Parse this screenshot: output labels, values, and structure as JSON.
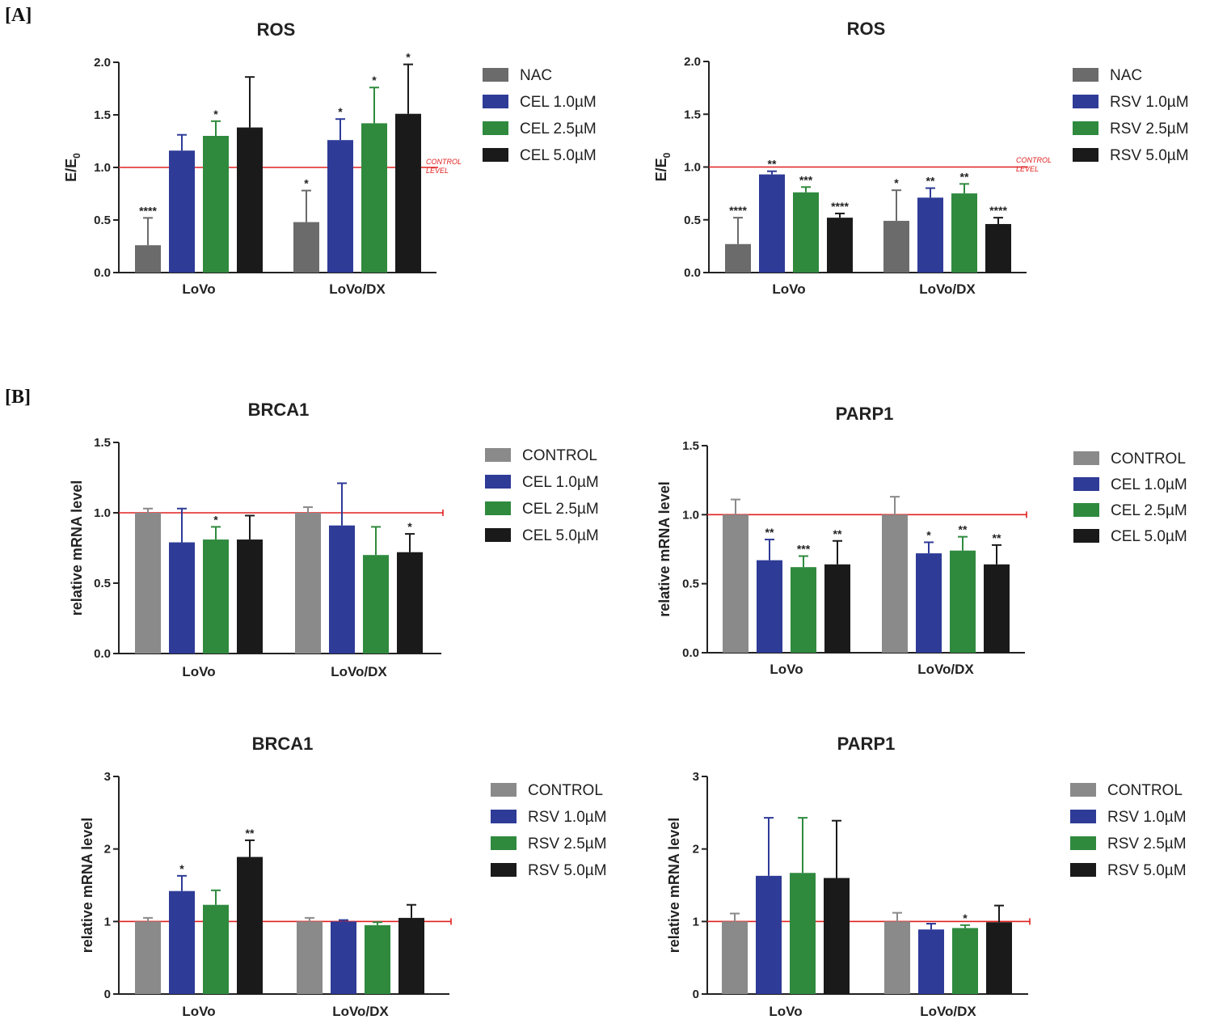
{
  "panel_labels": {
    "a": "[A]",
    "b": "[B]"
  },
  "colors": {
    "nac": "#6b6b6b",
    "control": "#8a8a8a",
    "blue": "#2e3b97",
    "green": "#2f8a3e",
    "black": "#1a1a1a",
    "control_line": "#e02020"
  },
  "chart_data": [
    {
      "id": "ros-cel",
      "type": "bar",
      "title": "ROS",
      "ylabel": "E/E",
      "ylabel_sub": "0",
      "ylim": [
        0,
        2.0
      ],
      "yticks": [
        "0.0",
        "0.5",
        "1.0",
        "1.5",
        "2.0"
      ],
      "categories": [
        "LoVo",
        "LoVo/DX"
      ],
      "control_level": 1.0,
      "control_note": [
        "CONTROL",
        "LEVEL"
      ],
      "series": [
        {
          "name": "NAC",
          "color": "nac",
          "values": [
            0.26,
            0.48
          ],
          "errors": [
            0.26,
            0.3
          ],
          "sig": [
            "****",
            "*"
          ]
        },
        {
          "name": "CEL 1.0µM",
          "color": "blue",
          "values": [
            1.16,
            1.26
          ],
          "errors": [
            0.15,
            0.2
          ],
          "sig": [
            "",
            "*"
          ]
        },
        {
          "name": "CEL 2.5µM",
          "color": "green",
          "values": [
            1.3,
            1.42
          ],
          "errors": [
            0.14,
            0.34
          ],
          "sig": [
            "*",
            "*"
          ]
        },
        {
          "name": "CEL 5.0µM",
          "color": "black",
          "values": [
            1.38,
            1.51
          ],
          "errors": [
            0.48,
            0.47
          ],
          "sig": [
            "",
            "*"
          ]
        }
      ]
    },
    {
      "id": "ros-rsv",
      "type": "bar",
      "title": "ROS",
      "ylabel": "E/E",
      "ylabel_sub": "0",
      "ylim": [
        0,
        2.0
      ],
      "yticks": [
        "0.0",
        "0.5",
        "1.0",
        "1.5",
        "2.0"
      ],
      "categories": [
        "LoVo",
        "LoVo/DX"
      ],
      "control_level": 1.0,
      "control_note": [
        "CONTROL",
        "LEVEL"
      ],
      "series": [
        {
          "name": "NAC",
          "color": "nac",
          "values": [
            0.27,
            0.49
          ],
          "errors": [
            0.25,
            0.29
          ],
          "sig": [
            "****",
            "*"
          ]
        },
        {
          "name": "RSV 1.0µM",
          "color": "blue",
          "values": [
            0.93,
            0.71
          ],
          "errors": [
            0.03,
            0.09
          ],
          "sig": [
            "**",
            "**"
          ]
        },
        {
          "name": "RSV 2.5µM",
          "color": "green",
          "values": [
            0.76,
            0.75
          ],
          "errors": [
            0.05,
            0.09
          ],
          "sig": [
            "***",
            "**"
          ]
        },
        {
          "name": "RSV 5.0µM",
          "color": "black",
          "values": [
            0.52,
            0.46
          ],
          "errors": [
            0.04,
            0.06
          ],
          "sig": [
            "****",
            "****"
          ]
        }
      ]
    },
    {
      "id": "brca1-cel",
      "type": "bar",
      "title": "BRCA1",
      "ylabel": "relative mRNA level",
      "ylabel_sub": "",
      "ylim": [
        0,
        1.5
      ],
      "yticks": [
        "0.0",
        "0.5",
        "1.0",
        "1.5"
      ],
      "categories": [
        "LoVo",
        "LoVo/DX"
      ],
      "control_level": 1.0,
      "series": [
        {
          "name": "CONTROL",
          "color": "control",
          "values": [
            1.0,
            1.0
          ],
          "errors": [
            0.03,
            0.04
          ],
          "sig": [
            "",
            ""
          ]
        },
        {
          "name": "CEL 1.0µM",
          "color": "blue",
          "values": [
            0.79,
            0.91
          ],
          "errors": [
            0.24,
            0.3
          ],
          "sig": [
            "",
            ""
          ]
        },
        {
          "name": "CEL 2.5µM",
          "color": "green",
          "values": [
            0.81,
            0.7
          ],
          "errors": [
            0.09,
            0.2
          ],
          "sig": [
            "*",
            ""
          ]
        },
        {
          "name": "CEL 5.0µM",
          "color": "black",
          "values": [
            0.81,
            0.72
          ],
          "errors": [
            0.17,
            0.13
          ],
          "sig": [
            "",
            "*"
          ]
        }
      ]
    },
    {
      "id": "parp1-cel",
      "type": "bar",
      "title": "PARP1",
      "ylabel": "relative mRNA level",
      "ylabel_sub": "",
      "ylim": [
        0,
        1.5
      ],
      "yticks": [
        "0.0",
        "0.5",
        "1.0",
        "1.5"
      ],
      "categories": [
        "LoVo",
        "LoVo/DX"
      ],
      "control_level": 1.0,
      "series": [
        {
          "name": "CONTROL",
          "color": "control",
          "values": [
            1.0,
            1.0
          ],
          "errors": [
            0.11,
            0.13
          ],
          "sig": [
            "",
            ""
          ]
        },
        {
          "name": "CEL 1.0µM",
          "color": "blue",
          "values": [
            0.67,
            0.72
          ],
          "errors": [
            0.15,
            0.08
          ],
          "sig": [
            "**",
            "*"
          ]
        },
        {
          "name": "CEL 2.5µM",
          "color": "green",
          "values": [
            0.62,
            0.74
          ],
          "errors": [
            0.08,
            0.1
          ],
          "sig": [
            "***",
            "**"
          ]
        },
        {
          "name": "CEL 5.0µM",
          "color": "black",
          "values": [
            0.64,
            0.64
          ],
          "errors": [
            0.17,
            0.14
          ],
          "sig": [
            "**",
            "**"
          ]
        }
      ]
    },
    {
      "id": "brca1-rsv",
      "type": "bar",
      "title": "BRCA1",
      "ylabel": "relative mRNA level",
      "ylabel_sub": "",
      "ylim": [
        0,
        3
      ],
      "yticks": [
        "0",
        "1",
        "2",
        "3"
      ],
      "categories": [
        "LoVo",
        "LoVo/DX"
      ],
      "control_level": 1.0,
      "series": [
        {
          "name": "CONTROL",
          "color": "control",
          "values": [
            1.0,
            1.0
          ],
          "errors": [
            0.05,
            0.05
          ],
          "sig": [
            "",
            ""
          ]
        },
        {
          "name": "RSV 1.0µM",
          "color": "blue",
          "values": [
            1.42,
            1.0
          ],
          "errors": [
            0.21,
            0.02
          ],
          "sig": [
            "*",
            ""
          ]
        },
        {
          "name": "RSV 2.5µM",
          "color": "green",
          "values": [
            1.23,
            0.95
          ],
          "errors": [
            0.2,
            0.04
          ],
          "sig": [
            "",
            ""
          ]
        },
        {
          "name": "RSV 5.0µM",
          "color": "black",
          "values": [
            1.89,
            1.05
          ],
          "errors": [
            0.23,
            0.18
          ],
          "sig": [
            "**",
            ""
          ]
        }
      ]
    },
    {
      "id": "parp1-rsv",
      "type": "bar",
      "title": "PARP1",
      "ylabel": "relative mRNA level",
      "ylabel_sub": "",
      "ylim": [
        0,
        3
      ],
      "yticks": [
        "0",
        "1",
        "2",
        "3"
      ],
      "categories": [
        "LoVo",
        "LoVo/DX"
      ],
      "control_level": 1.0,
      "series": [
        {
          "name": "CONTROL",
          "color": "control",
          "values": [
            1.0,
            1.0
          ],
          "errors": [
            0.11,
            0.12
          ],
          "sig": [
            "",
            ""
          ]
        },
        {
          "name": "RSV 1.0µM",
          "color": "blue",
          "values": [
            1.63,
            0.89
          ],
          "errors": [
            0.8,
            0.08
          ],
          "sig": [
            "",
            ""
          ]
        },
        {
          "name": "RSV 2.5µM",
          "color": "green",
          "values": [
            1.67,
            0.91
          ],
          "errors": [
            0.76,
            0.04
          ],
          "sig": [
            "",
            "*"
          ]
        },
        {
          "name": "RSV 5.0µM",
          "color": "black",
          "values": [
            1.6,
            0.99
          ],
          "errors": [
            0.79,
            0.23
          ],
          "sig": [
            "",
            ""
          ]
        }
      ]
    }
  ]
}
